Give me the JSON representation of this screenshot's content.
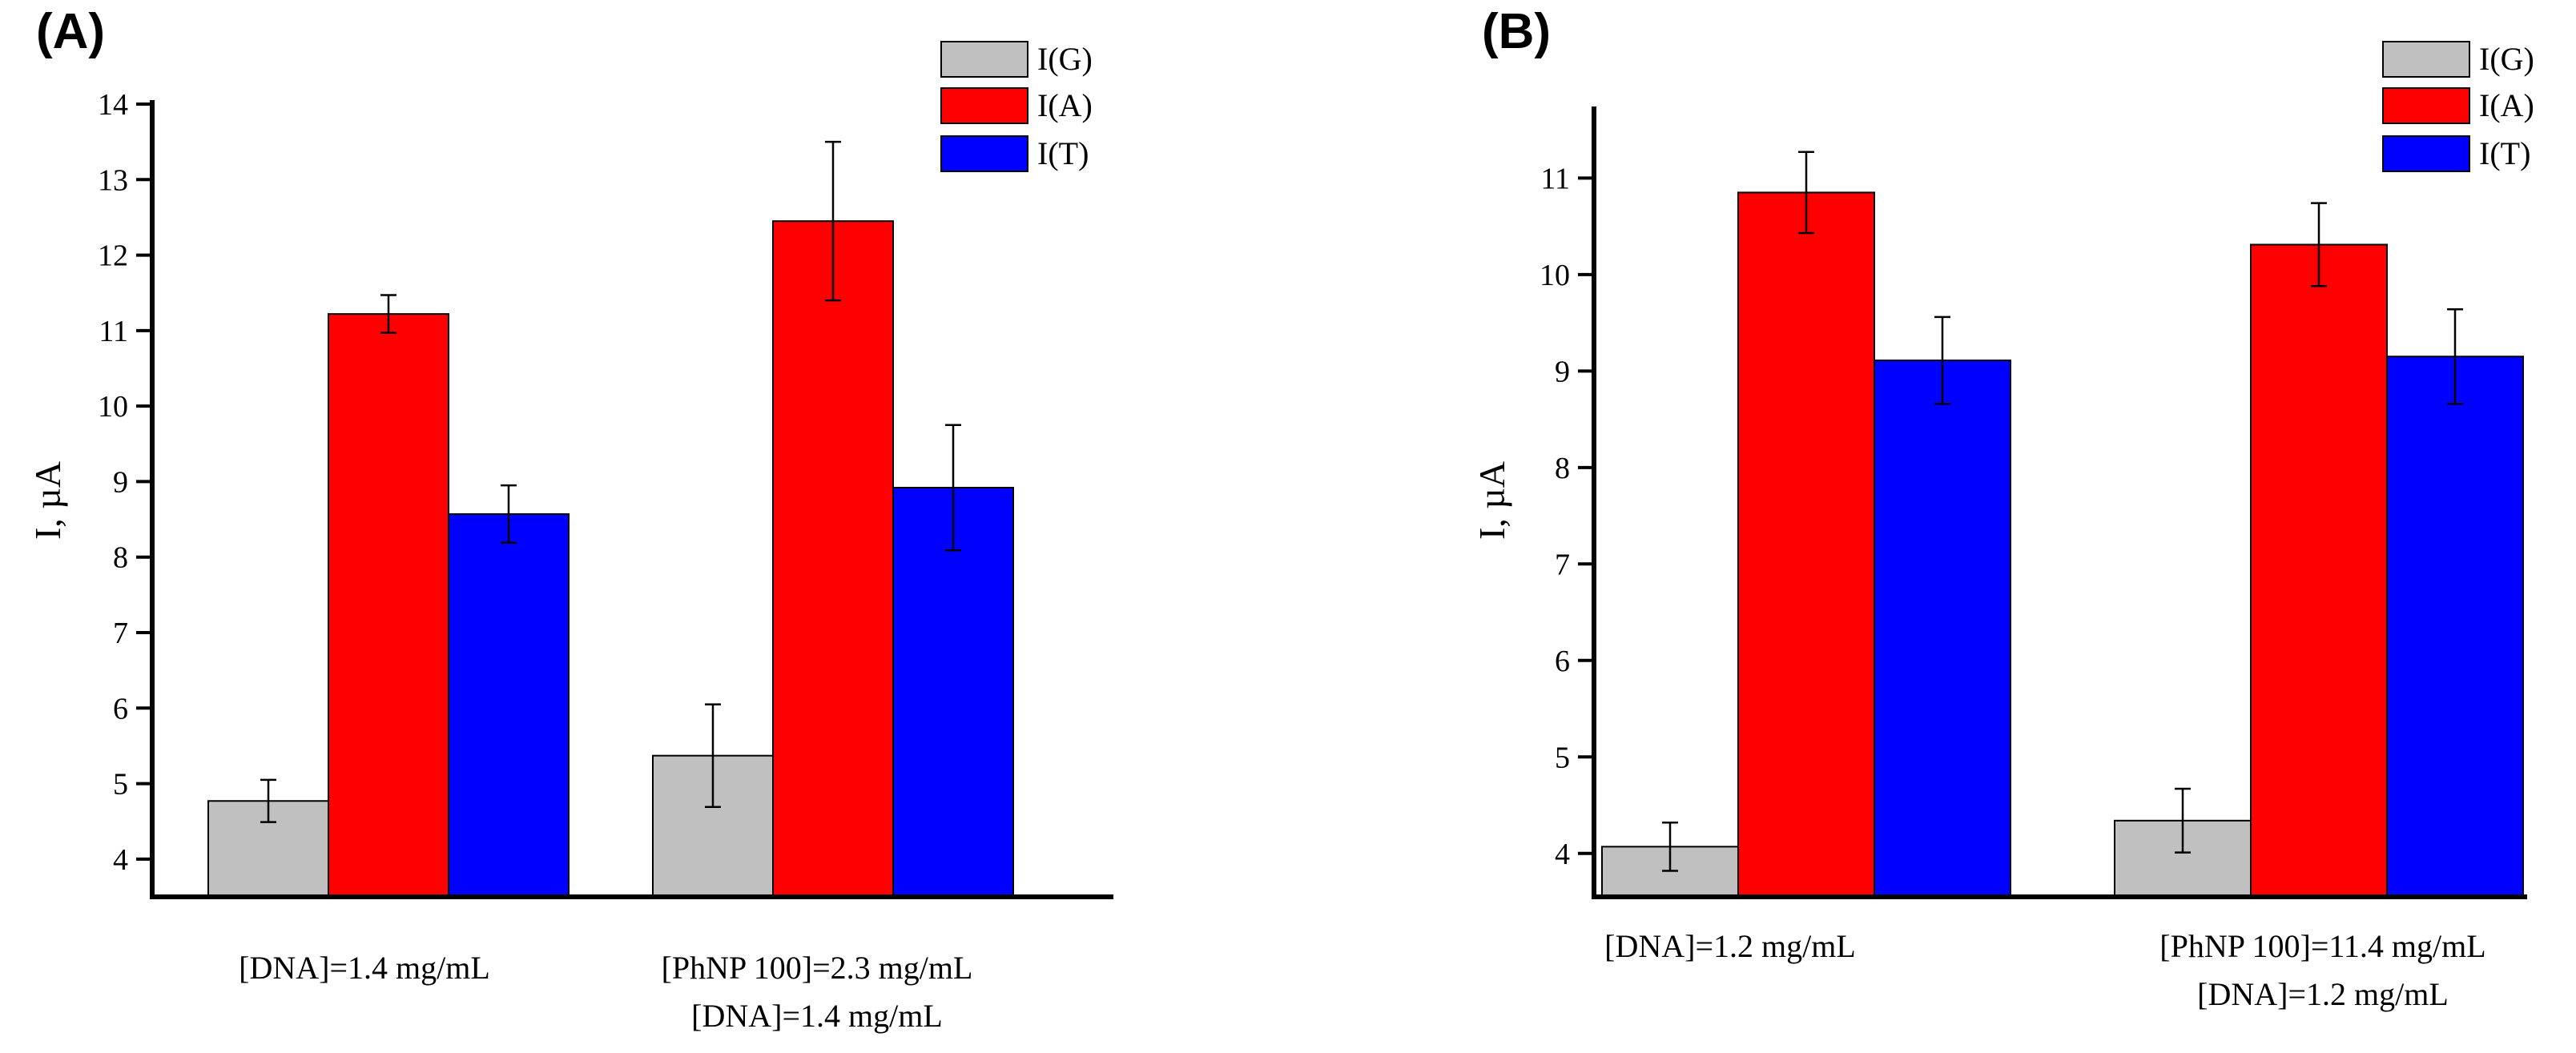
{
  "chart_data": [
    {
      "type": "bar",
      "panel_label": "(A)",
      "ylabel": "I, µA",
      "xlabel": "",
      "ylim": [
        3.5,
        14
      ],
      "yticks": [
        "4",
        "5",
        "6",
        "7",
        "8",
        "9",
        "10",
        "11",
        "12",
        "13",
        "14"
      ],
      "categories": [
        [
          "[DNA]=1.4 mg/mL"
        ],
        [
          "[PhNP 100]=2.3 mg/mL",
          "[DNA]=1.4 mg/mL"
        ]
      ],
      "legend_position": "top-right",
      "series": [
        {
          "name": "I(G)",
          "color": "#c0c0c0",
          "values": [
            4.77,
            5.37
          ],
          "errors": [
            0.28,
            0.68
          ]
        },
        {
          "name": "I(A)",
          "color": "#ff0000",
          "values": [
            11.22,
            12.45
          ],
          "errors": [
            0.25,
            1.05
          ]
        },
        {
          "name": "I(T)",
          "color": "#0000ff",
          "values": [
            8.57,
            8.92
          ],
          "errors": [
            0.38,
            0.83
          ]
        }
      ]
    },
    {
      "type": "bar",
      "panel_label": "(B)",
      "ylabel": "I, µA",
      "xlabel": "",
      "ylim": [
        3.55,
        11.7
      ],
      "yticks": [
        "4",
        "5",
        "6",
        "7",
        "8",
        "9",
        "10",
        "11"
      ],
      "categories": [
        [
          "[DNA]=1.2 mg/mL"
        ],
        [
          "[PhNP 100]=11.4 mg/mL",
          "[DNA]=1.2 mg/mL"
        ]
      ],
      "legend_position": "top-right",
      "series": [
        {
          "name": "I(G)",
          "color": "#c0c0c0",
          "values": [
            4.07,
            4.34
          ],
          "errors": [
            0.25,
            0.33
          ]
        },
        {
          "name": "I(A)",
          "color": "#ff0000",
          "values": [
            10.85,
            10.31
          ],
          "errors": [
            0.42,
            0.43
          ]
        },
        {
          "name": "I(T)",
          "color": "#0000ff",
          "values": [
            9.11,
            9.15
          ],
          "errors": [
            0.45,
            0.49
          ]
        }
      ]
    }
  ]
}
